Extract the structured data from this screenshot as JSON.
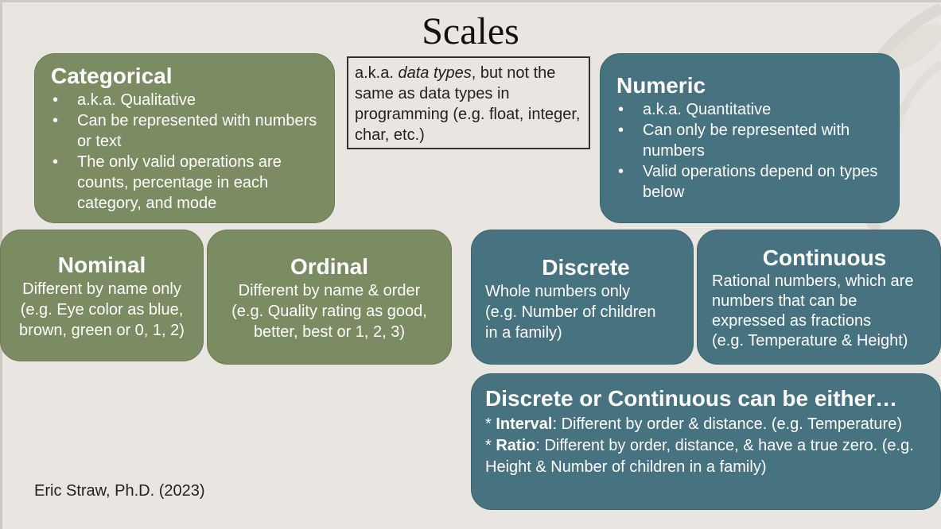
{
  "slide": {
    "title": "Scales",
    "credit": "Eric Straw, Ph.D. (2023)",
    "note": {
      "prefix": "a.k.a. ",
      "italic": "data types",
      "suffix": ", but not the same as data types in programming (e.g. float, integer, char, etc.)"
    },
    "categorical": {
      "heading": "Categorical",
      "bullets": [
        "a.k.a. Qualitative",
        "Can be represented with numbers or text",
        "The only valid operations are counts, percentage in each category, and mode"
      ]
    },
    "numeric": {
      "heading": "Numeric",
      "bullets": [
        "a.k.a. Quantitative",
        "Can only be represented with numbers",
        "Valid operations depend on types below"
      ]
    },
    "nominal": {
      "heading": "Nominal",
      "lines": [
        "Different by name only",
        "(e.g. Eye color as blue,",
        "brown, green or 0, 1, 2)"
      ]
    },
    "ordinal": {
      "heading": "Ordinal",
      "lines": [
        "Different by name & order",
        "(e.g. Quality rating as good,",
        "better, best or 1, 2, 3)"
      ]
    },
    "discrete": {
      "heading": "Discrete",
      "lines": [
        "Whole numbers only",
        "(e.g. Number of children",
        "in a family)"
      ]
    },
    "continuous": {
      "heading": "Continuous",
      "lines": [
        "Rational numbers, which are",
        "numbers that can be",
        "expressed as fractions",
        "(e.g. Temperature & Height)"
      ]
    },
    "either": {
      "heading": "Discrete or Continuous can be either…",
      "interval_label": "Interval",
      "interval_text": ": Different by order & distance. (e.g. Temperature)",
      "ratio_label": "Ratio",
      "ratio_text": ": Different by order, distance, & have a true zero. (e.g. Height & Number of children in a family)"
    }
  }
}
